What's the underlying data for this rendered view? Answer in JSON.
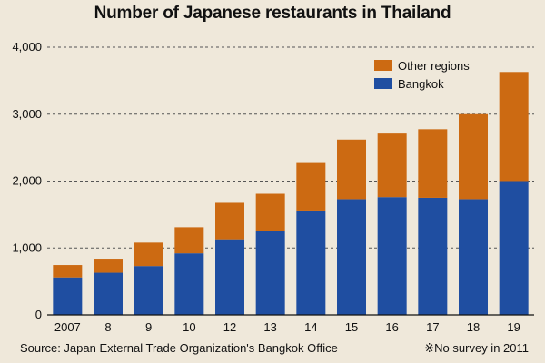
{
  "chart_data": {
    "type": "bar",
    "stacked": true,
    "title": "Number of Japanese restaurants in Thailand",
    "categories": [
      "2007",
      "8",
      "9",
      "10",
      "12",
      "13",
      "14",
      "15",
      "16",
      "17",
      "18",
      "19"
    ],
    "series": [
      {
        "name": "Bangkok",
        "color": "#1f4ea1",
        "values": [
          560,
          630,
          730,
          920,
          1130,
          1250,
          1560,
          1730,
          1760,
          1750,
          1730,
          2000
        ]
      },
      {
        "name": "Other regions",
        "color": "#cc6a12",
        "values": [
          185,
          210,
          350,
          390,
          545,
          560,
          710,
          890,
          950,
          1025,
          1270,
          1630
        ]
      }
    ],
    "yticks": [
      0,
      1000,
      2000,
      3000,
      4000
    ],
    "ytick_labels": [
      "0",
      "1,000",
      "2,000",
      "3,000",
      "4,000"
    ],
    "ylim": [
      0,
      4000
    ],
    "grid": "horizontal dashed",
    "legend_position": "top-right",
    "source": "Source: Japan External Trade Organization's Bangkok Office",
    "footnote": "※No survey in 2011"
  }
}
